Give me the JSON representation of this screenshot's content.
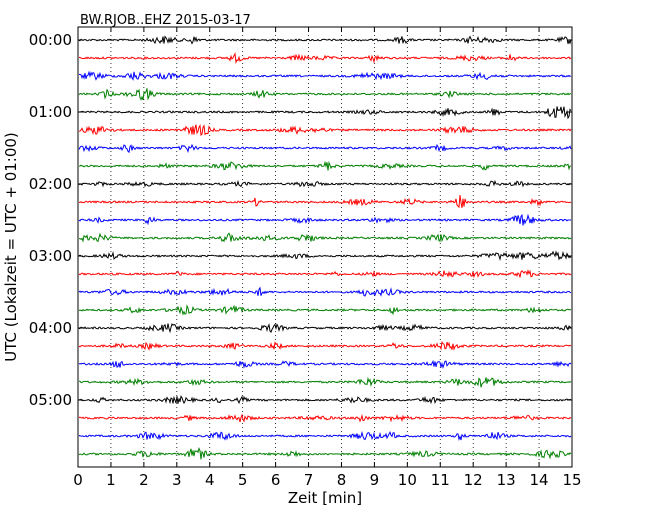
{
  "chart_data": {
    "type": "line",
    "title": "BW.RJOB..EHZ 2015-03-17",
    "xlabel": "Zeit  [min]",
    "ylabel": "UTC (Lokalzeit = UTC + 01:00)",
    "xlim": [
      0,
      15
    ],
    "x_ticks": [
      "0",
      "1",
      "2",
      "3",
      "4",
      "5",
      "6",
      "7",
      "8",
      "9",
      "10",
      "11",
      "12",
      "13",
      "14",
      "15"
    ],
    "y_ticks": [
      "00:00",
      "01:00",
      "02:00",
      "03:00",
      "04:00",
      "05:00"
    ],
    "grid": "vertical dotted",
    "trace_interval_min": 15,
    "color_cycle": [
      "#000000",
      "#ff0000",
      "#0000ff",
      "#008000"
    ],
    "series": [
      {
        "start": "00:00",
        "color": "#000000"
      },
      {
        "start": "00:15",
        "color": "#ff0000"
      },
      {
        "start": "00:30",
        "color": "#0000ff"
      },
      {
        "start": "00:45",
        "color": "#008000"
      },
      {
        "start": "01:00",
        "color": "#000000"
      },
      {
        "start": "01:15",
        "color": "#ff0000"
      },
      {
        "start": "01:30",
        "color": "#0000ff"
      },
      {
        "start": "01:45",
        "color": "#008000"
      },
      {
        "start": "02:00",
        "color": "#000000"
      },
      {
        "start": "02:15",
        "color": "#ff0000"
      },
      {
        "start": "02:30",
        "color": "#0000ff"
      },
      {
        "start": "02:45",
        "color": "#008000"
      },
      {
        "start": "03:00",
        "color": "#000000"
      },
      {
        "start": "03:15",
        "color": "#ff0000"
      },
      {
        "start": "03:30",
        "color": "#0000ff"
      },
      {
        "start": "03:45",
        "color": "#008000"
      },
      {
        "start": "04:00",
        "color": "#000000"
      },
      {
        "start": "04:15",
        "color": "#ff0000"
      },
      {
        "start": "04:30",
        "color": "#0000ff"
      },
      {
        "start": "04:45",
        "color": "#008000"
      },
      {
        "start": "05:00",
        "color": "#000000"
      },
      {
        "start": "05:15",
        "color": "#ff0000"
      },
      {
        "start": "05:30",
        "color": "#0000ff"
      },
      {
        "start": "05:45",
        "color": "#008000"
      }
    ]
  }
}
